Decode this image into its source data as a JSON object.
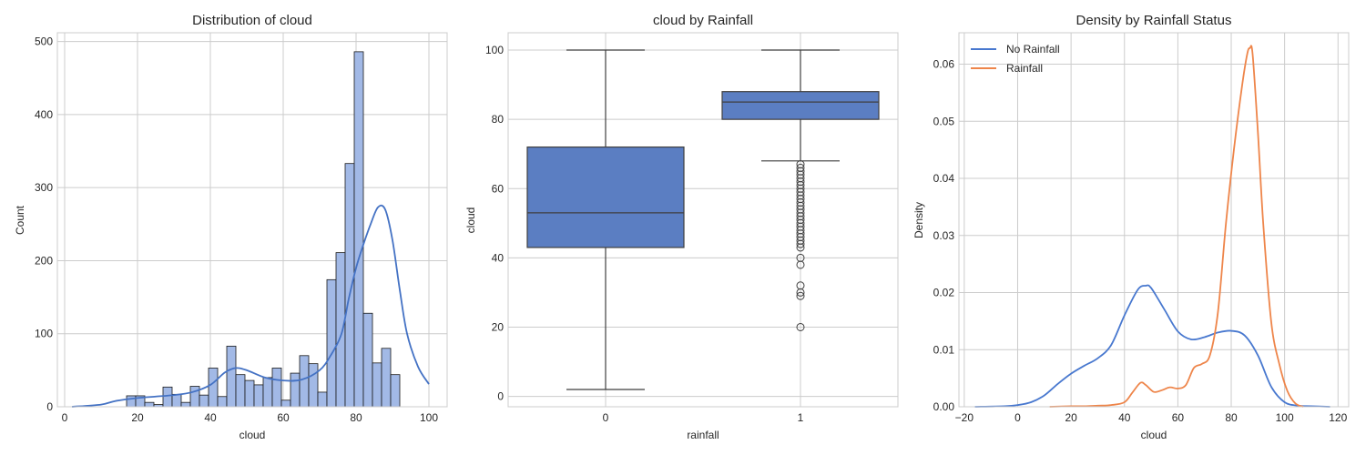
{
  "chart_data": [
    {
      "type": "bar",
      "title": "Distribution of cloud",
      "xlabel": "cloud",
      "ylabel": "Count",
      "xlim": [
        -2,
        105
      ],
      "ylim": [
        0,
        512
      ],
      "xticks": [
        0,
        20,
        40,
        60,
        80,
        100
      ],
      "yticks": [
        0,
        100,
        200,
        300,
        400,
        500
      ],
      "grid": true,
      "bins": [
        {
          "x0": 17,
          "x1": 19.5,
          "count": 15
        },
        {
          "x0": 19.5,
          "x1": 22,
          "count": 15
        },
        {
          "x0": 22,
          "x1": 24.5,
          "count": 6
        },
        {
          "x0": 24.5,
          "x1": 27,
          "count": 3
        },
        {
          "x0": 27,
          "x1": 29.5,
          "count": 27
        },
        {
          "x0": 29.5,
          "x1": 32,
          "count": 17
        },
        {
          "x0": 32,
          "x1": 34.5,
          "count": 6
        },
        {
          "x0": 34.5,
          "x1": 37,
          "count": 28
        },
        {
          "x0": 37,
          "x1": 39.5,
          "count": 16
        },
        {
          "x0": 39.5,
          "x1": 42,
          "count": 53
        },
        {
          "x0": 42,
          "x1": 44.5,
          "count": 14
        },
        {
          "x0": 44.5,
          "x1": 47,
          "count": 83
        },
        {
          "x0": 47,
          "x1": 49.5,
          "count": 44
        },
        {
          "x0": 49.5,
          "x1": 52,
          "count": 36
        },
        {
          "x0": 52,
          "x1": 54.5,
          "count": 30
        },
        {
          "x0": 54.5,
          "x1": 57,
          "count": 40
        },
        {
          "x0": 57,
          "x1": 59.5,
          "count": 53
        },
        {
          "x0": 59.5,
          "x1": 62,
          "count": 9
        },
        {
          "x0": 62,
          "x1": 64.5,
          "count": 46
        },
        {
          "x0": 64.5,
          "x1": 67,
          "count": 70
        },
        {
          "x0": 67,
          "x1": 69.5,
          "count": 59
        },
        {
          "x0": 69.5,
          "x1": 72,
          "count": 20
        },
        {
          "x0": 72,
          "x1": 74.5,
          "count": 174
        },
        {
          "x0": 74.5,
          "x1": 77,
          "count": 211
        },
        {
          "x0": 77,
          "x1": 79.5,
          "count": 333
        },
        {
          "x0": 79.5,
          "x1": 82,
          "count": 486
        },
        {
          "x0": 82,
          "x1": 84.5,
          "count": 128
        },
        {
          "x0": 84.5,
          "x1": 87,
          "count": 60
        },
        {
          "x0": 87,
          "x1": 89.5,
          "count": 80
        },
        {
          "x0": 89.5,
          "x1": 92,
          "count": 44
        }
      ],
      "kde": {
        "x": [
          2,
          10,
          14,
          20,
          25,
          30,
          35,
          40,
          44,
          47,
          50,
          55,
          60,
          65,
          70,
          73,
          76,
          78,
          80,
          82,
          84,
          86,
          88,
          90,
          92,
          94,
          97,
          100
        ],
        "y": [
          0,
          3,
          8,
          12,
          14,
          16,
          20,
          30,
          47,
          53,
          50,
          40,
          36,
          37,
          50,
          70,
          100,
          148,
          190,
          222,
          250,
          273,
          270,
          228,
          160,
          100,
          55,
          31
        ]
      }
    },
    {
      "type": "box",
      "title": "cloud by Rainfall",
      "xlabel": "rainfall",
      "ylabel": "cloud",
      "ylim": [
        -3,
        105
      ],
      "yticks": [
        0,
        20,
        40,
        60,
        80,
        100
      ],
      "categories": [
        "0",
        "1"
      ],
      "grid": true,
      "boxes": [
        {
          "category": "0",
          "whisker_low": 2,
          "q1": 43,
          "median": 53,
          "q3": 72,
          "whisker_high": 100,
          "outliers": []
        },
        {
          "category": "1",
          "whisker_low": 68,
          "q1": 80,
          "median": 85,
          "q3": 88,
          "whisker_high": 100,
          "outliers": [
            67,
            66,
            65,
            64,
            63,
            62,
            61,
            60,
            59,
            58,
            57,
            56,
            55,
            54,
            53,
            52,
            51,
            50,
            49,
            48,
            47,
            46,
            45,
            44,
            43,
            40,
            38,
            32,
            30,
            29,
            20
          ]
        }
      ]
    },
    {
      "type": "line",
      "title": "Density by Rainfall Status",
      "xlabel": "cloud",
      "ylabel": "Density",
      "xlim": [
        -22,
        124
      ],
      "ylim": [
        0,
        0.0655
      ],
      "xticks": [
        -20,
        0,
        20,
        40,
        60,
        80,
        100,
        120
      ],
      "yticks": [
        0.0,
        0.01,
        0.02,
        0.03,
        0.04,
        0.05,
        0.06
      ],
      "legend": "top-left",
      "grid": true,
      "series": [
        {
          "name": "No Rainfall",
          "color": "#4878cf",
          "x": [
            -16,
            -5,
            0,
            5,
            10,
            15,
            20,
            25,
            30,
            35,
            40,
            45,
            48,
            50,
            55,
            60,
            65,
            70,
            75,
            80,
            85,
            90,
            95,
            100,
            105,
            110,
            117
          ],
          "y": [
            0,
            0.0001,
            0.0003,
            0.0008,
            0.002,
            0.004,
            0.0058,
            0.0072,
            0.0085,
            0.0108,
            0.016,
            0.0205,
            0.0212,
            0.0208,
            0.017,
            0.0132,
            0.0118,
            0.0122,
            0.013,
            0.0133,
            0.0125,
            0.009,
            0.0035,
            0.0008,
            0.0002,
            0.0001,
            0
          ]
        },
        {
          "name": "Rainfall",
          "color": "#ee854a",
          "x": [
            12,
            20,
            25,
            30,
            35,
            40,
            43,
            46,
            48,
            51,
            54,
            57,
            60,
            63,
            66,
            69,
            72,
            75,
            78,
            81,
            84,
            86,
            87,
            88,
            90,
            92,
            95,
            98,
            101,
            104,
            107
          ],
          "y": [
            0,
            0.0001,
            0.0001,
            0.0002,
            0.0003,
            0.0008,
            0.0025,
            0.0042,
            0.0038,
            0.0026,
            0.0029,
            0.0034,
            0.0032,
            0.0038,
            0.0068,
            0.0075,
            0.009,
            0.0165,
            0.032,
            0.045,
            0.056,
            0.0618,
            0.0628,
            0.0618,
            0.048,
            0.032,
            0.0148,
            0.0075,
            0.0028,
            0.0006,
            0
          ]
        }
      ]
    }
  ]
}
